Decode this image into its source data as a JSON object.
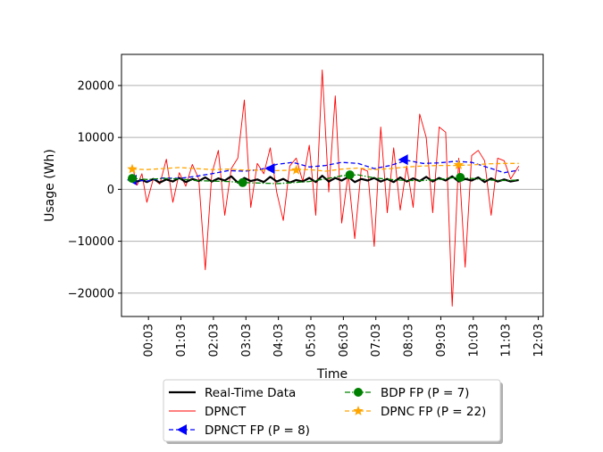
{
  "chart_data": {
    "type": "line",
    "xlabel": "Time",
    "ylabel": "Usage (Wh)",
    "ylim": [
      -24500,
      26000
    ],
    "xlim": [
      -0.78,
      12.2
    ],
    "grid": "y",
    "legend_position": "bottom-center",
    "x_ticks": [
      0.05,
      1.05,
      2.05,
      3.05,
      4.05,
      5.05,
      6.05,
      7.05,
      8.05,
      9.05,
      10.05,
      11.05,
      12.05
    ],
    "x_tick_labels": [
      "00:03",
      "01:03",
      "02:03",
      "03:03",
      "04:03",
      "05:03",
      "06:03",
      "07:03",
      "08:03",
      "09:03",
      "10:03",
      "11:03",
      "12:03"
    ],
    "y_ticks": [
      -20000,
      -10000,
      0,
      10000,
      20000
    ],
    "y_tick_labels": [
      "−20000",
      "−10000",
      "0",
      "10000",
      "20000"
    ],
    "series": [
      {
        "name": "Real-Time Data",
        "color": "#000000",
        "style": "solid-thick",
        "x": [
          -0.45,
          -0.3,
          -0.15,
          0.0,
          0.2,
          0.4,
          0.6,
          0.8,
          1.0,
          1.2,
          1.4,
          1.6,
          1.8,
          2.0,
          2.2,
          2.4,
          2.6,
          2.8,
          3.0,
          3.2,
          3.4,
          3.6,
          3.8,
          4.0,
          4.2,
          4.4,
          4.6,
          4.8,
          5.0,
          5.2,
          5.4,
          5.6,
          5.8,
          6.0,
          6.2,
          6.4,
          6.6,
          6.8,
          7.0,
          7.2,
          7.4,
          7.6,
          7.8,
          8.0,
          8.2,
          8.4,
          8.6,
          8.8,
          9.0,
          9.2,
          9.4,
          9.6,
          9.8,
          10.0,
          10.2,
          10.4,
          10.6,
          10.8,
          11.0,
          11.2,
          11.45
        ],
        "y": [
          2100,
          1500,
          1800,
          1400,
          2000,
          1300,
          1900,
          1500,
          2200,
          1400,
          2000,
          1600,
          2300,
          1500,
          2100,
          1700,
          2500,
          1300,
          2200,
          1600,
          1900,
          1400,
          2400,
          1500,
          2000,
          1300,
          1800,
          1500,
          2200,
          1400,
          2600,
          1500,
          2200,
          1700,
          2400,
          1400,
          2000,
          1700,
          2200,
          1500,
          2000,
          1400,
          2300,
          1500,
          2100,
          1600,
          2400,
          1500,
          2200,
          1700,
          2500,
          1500,
          2000,
          1700,
          2300,
          1400,
          2100,
          1500,
          1900,
          1500,
          1800
        ]
      },
      {
        "name": "DPNCT",
        "color": "#ff0000",
        "style": "solid-thin",
        "x": [
          -0.45,
          -0.3,
          -0.15,
          0.0,
          0.2,
          0.4,
          0.6,
          0.8,
          1.0,
          1.2,
          1.4,
          1.6,
          1.8,
          2.0,
          2.2,
          2.4,
          2.6,
          2.8,
          3.0,
          3.2,
          3.4,
          3.6,
          3.8,
          4.0,
          4.2,
          4.4,
          4.6,
          4.8,
          5.0,
          5.2,
          5.4,
          5.6,
          5.8,
          6.0,
          6.2,
          6.4,
          6.6,
          6.8,
          7.0,
          7.2,
          7.4,
          7.6,
          7.8,
          8.0,
          8.2,
          8.4,
          8.6,
          8.8,
          9.0,
          9.2,
          9.4,
          9.6,
          9.8,
          10.0,
          10.2,
          10.4,
          10.6,
          10.8,
          11.0,
          11.2,
          11.45
        ],
        "y": [
          4500,
          800,
          3000,
          -2500,
          2000,
          1000,
          5800,
          -2500,
          3200,
          600,
          4800,
          2000,
          -15500,
          3000,
          7500,
          -5000,
          4000,
          6000,
          17200,
          -3500,
          5000,
          3000,
          8000,
          -600,
          -6000,
          4500,
          6000,
          1500,
          8500,
          -5000,
          23000,
          -500,
          18000,
          -6500,
          3000,
          -9500,
          4000,
          3500,
          -11000,
          12000,
          -4500,
          8000,
          -4000,
          4500,
          -3500,
          14500,
          10000,
          -4500,
          12000,
          11000,
          -22500,
          6000,
          -15000,
          6500,
          7500,
          5500,
          -5000,
          6000,
          5500,
          2000,
          4500
        ]
      },
      {
        "name": "DPNCT FP (P = 8)",
        "color": "#0000ff",
        "style": "dashed",
        "x": [
          -0.45,
          0.0,
          0.5,
          1.0,
          1.5,
          2.0,
          2.5,
          3.0,
          3.5,
          4.0,
          4.5,
          5.0,
          5.5,
          6.0,
          6.5,
          7.0,
          7.5,
          8.0,
          8.5,
          9.0,
          9.5,
          10.0,
          10.5,
          11.0,
          11.45
        ],
        "y": [
          1800,
          1600,
          2200,
          2100,
          2500,
          3000,
          3600,
          3500,
          3800,
          4800,
          5200,
          4300,
          4600,
          5200,
          5000,
          4000,
          4600,
          5600,
          5000,
          5100,
          5400,
          5200,
          4200,
          3200,
          3700
        ],
        "markers": {
          "x": [
            -0.45,
            3.8,
            7.9
          ],
          "y": [
            1800,
            4000,
            5700
          ],
          "symbol": "triangle-left"
        }
      },
      {
        "name": "BDP FP (P = 7)",
        "color": "#008000",
        "style": "dashdot",
        "x": [
          -0.45,
          0.0,
          0.5,
          1.0,
          1.5,
          2.0,
          2.5,
          3.0,
          3.5,
          4.0,
          4.5,
          5.0,
          5.5,
          6.0,
          6.5,
          7.0,
          7.5,
          8.0,
          8.5,
          9.0,
          9.5,
          10.0,
          10.5,
          11.0,
          11.45
        ],
        "y": [
          2100,
          1900,
          2100,
          2000,
          1700,
          1600,
          1500,
          1300,
          1200,
          1100,
          1300,
          1500,
          2000,
          2600,
          2800,
          2200,
          1900,
          1700,
          1700,
          1900,
          2300,
          2100,
          1800,
          1700,
          1800
        ],
        "markers": {
          "x": [
            -0.45,
            2.95,
            6.25,
            9.65
          ],
          "y": [
            2100,
            1300,
            2800,
            2300
          ],
          "symbol": "circle"
        }
      },
      {
        "name": "DPNC FP (P = 22)",
        "color": "#ffa500",
        "style": "dashed",
        "x": [
          -0.45,
          0.0,
          0.5,
          1.0,
          1.5,
          2.0,
          2.5,
          3.0,
          3.5,
          4.0,
          4.5,
          5.0,
          5.5,
          6.0,
          6.5,
          7.0,
          7.5,
          8.0,
          8.5,
          9.0,
          9.5,
          10.0,
          10.5,
          11.0,
          11.45
        ],
        "y": [
          3900,
          3800,
          4000,
          4200,
          4000,
          3800,
          3900,
          3700,
          3700,
          3600,
          3700,
          3800,
          3500,
          3900,
          4100,
          3800,
          4000,
          4300,
          4500,
          4600,
          4600,
          4700,
          4900,
          5000,
          5000
        ],
        "markers": {
          "x": [
            -0.45,
            4.6,
            9.6
          ],
          "y": [
            3900,
            3700,
            4700
          ],
          "symbol": "star"
        }
      }
    ]
  }
}
